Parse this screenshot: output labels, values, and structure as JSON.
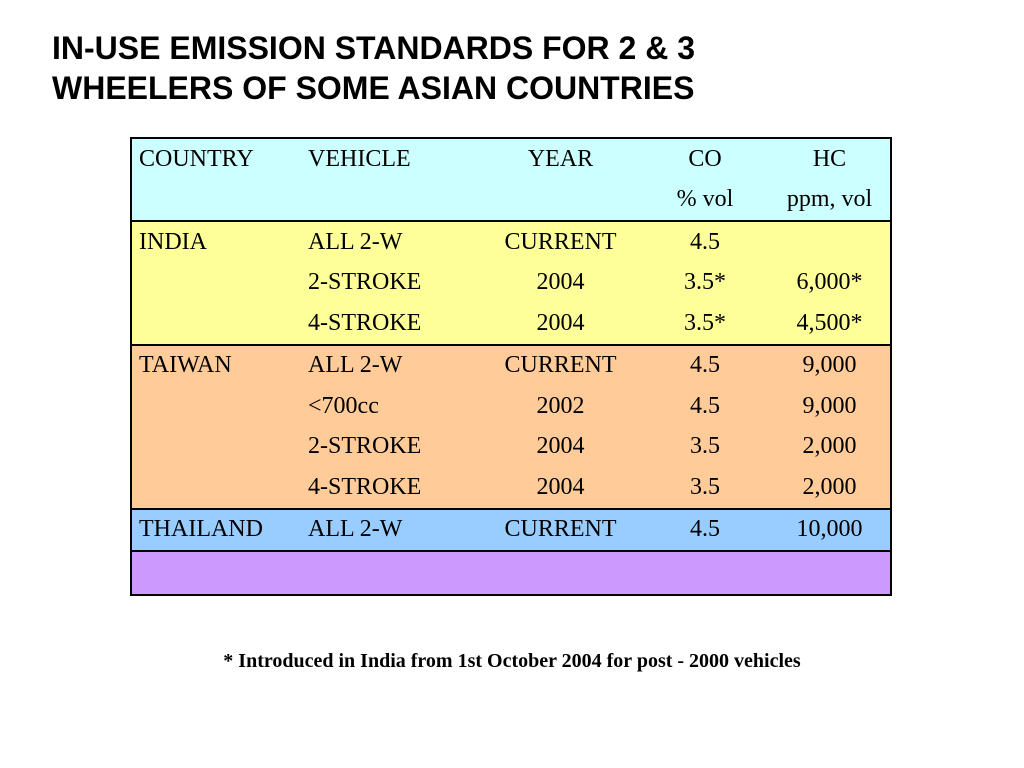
{
  "title": {
    "line1": "IN-USE EMISSION STANDARDS FOR 2 & 3",
    "line2": "WHEELERS OF SOME ASIAN COUNTRIES"
  },
  "table": {
    "header": [
      [
        "COUNTRY",
        "VEHICLE",
        "YEAR",
        "CO",
        "HC"
      ],
      [
        "",
        "",
        "",
        "% vol",
        "ppm, vol"
      ]
    ],
    "india": [
      [
        "INDIA",
        "ALL 2-W",
        "CURRENT",
        "4.5",
        ""
      ],
      [
        "",
        "2-STROKE",
        "2004",
        "3.5*",
        "6,000*"
      ],
      [
        "",
        "4-STROKE",
        "2004",
        "3.5*",
        "4,500*"
      ]
    ],
    "taiwan": [
      [
        "TAIWAN",
        "ALL 2-W",
        "CURRENT",
        "4.5",
        "9,000"
      ],
      [
        "",
        "<700cc",
        "2002",
        "4.5",
        "9,000"
      ],
      [
        "",
        "2-STROKE",
        "2004",
        "3.5",
        "2,000"
      ],
      [
        "",
        "4-STROKE",
        "2004",
        "3.5",
        "2,000"
      ]
    ],
    "thailand": [
      [
        "THAILAND",
        "ALL 2-W",
        "CURRENT",
        "4.5",
        "10,000"
      ]
    ]
  },
  "footnote": "* Introduced in India from 1st October 2004 for post - 2000 vehicles",
  "colors": {
    "header_band": "#ccffff",
    "india_band": "#ffff99",
    "taiwan_band": "#ffcc99",
    "thailand_band": "#99ccff",
    "empty_band": "#cc99ff"
  }
}
